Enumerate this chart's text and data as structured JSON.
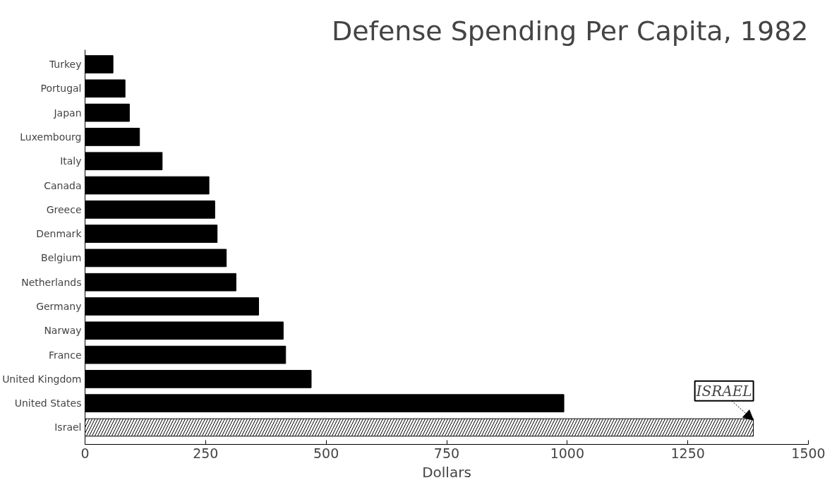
{
  "chart_data": {
    "type": "bar",
    "orientation": "horizontal",
    "title": "Defense Spending Per Capita, 1982",
    "xlabel": "Dollars",
    "categories": [
      "Turkey",
      "Portugal",
      "Japan",
      "Luxembourg",
      "Italy",
      "Canada",
      "Greece",
      "Denmark",
      "Belgium",
      "Netherlands",
      "Germany",
      "Narway",
      "France",
      "United Kingdom",
      "United States",
      "Israel"
    ],
    "values": [
      58,
      83,
      92,
      113,
      160,
      257,
      269,
      274,
      293,
      313,
      360,
      411,
      416,
      469,
      993,
      1386
    ],
    "colors": [
      "#000000",
      "#000000",
      "#000000",
      "#000000",
      "#000000",
      "#000000",
      "#000000",
      "#000000",
      "#000000",
      "#000000",
      "#000000",
      "#000000",
      "#000000",
      "#000000",
      "#000000",
      "#ffffff"
    ],
    "xlim": [
      0,
      1500
    ],
    "xticks": [
      0,
      250,
      500,
      750,
      1000,
      1250,
      1500
    ],
    "grid": false,
    "annotations": [
      {
        "text": "ISRAEL",
        "x": 1386,
        "y": "Israel"
      }
    ]
  }
}
